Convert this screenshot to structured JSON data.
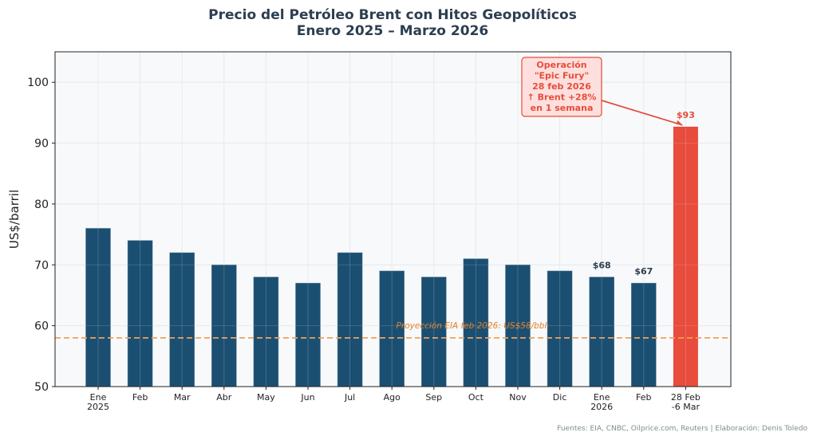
{
  "chart_data": {
    "type": "bar",
    "title": "Precio del Petróleo Brent con Hitos Geopolíticos",
    "subtitle": "Enero 2025 – Marzo 2026",
    "xlabel": "",
    "ylabel": "US$/barril",
    "ylim": [
      50,
      105
    ],
    "yticks": [
      50,
      60,
      70,
      80,
      90,
      100
    ],
    "grid": true,
    "categories": [
      "Ene\n2025",
      "Feb",
      "Mar",
      "Abr",
      "May",
      "Jun",
      "Jul",
      "Ago",
      "Sep",
      "Oct",
      "Nov",
      "Dic",
      "Ene\n2026",
      "Feb",
      "28 Feb\n-6 Mar"
    ],
    "values": [
      76,
      74,
      72,
      70,
      68,
      67,
      72,
      69,
      68,
      71,
      70,
      69,
      68,
      67,
      92.7
    ],
    "bar_colors": [
      "#1b4f72",
      "#1b4f72",
      "#1b4f72",
      "#1b4f72",
      "#1b4f72",
      "#1b4f72",
      "#1b4f72",
      "#1b4f72",
      "#1b4f72",
      "#1b4f72",
      "#1b4f72",
      "#1b4f72",
      "#1b4f72",
      "#1b4f72",
      "#e74c3c"
    ],
    "value_labels": [
      {
        "index": 12,
        "text": "$68",
        "highlight": false
      },
      {
        "index": 13,
        "text": "$67",
        "highlight": false
      },
      {
        "index": 14,
        "text": "$93",
        "highlight": true
      }
    ],
    "reference_line": {
      "y": 58,
      "label": "Proyección EIA feb 2026: US$58/bbl",
      "color": "#f0a05a",
      "style": "dashed"
    },
    "annotation": {
      "lines": [
        "Operación",
        "\"Epic Fury\"",
        "28 feb 2026",
        "↑ Brent +28%",
        "en 1 semana"
      ],
      "target_index": 14,
      "color": "#e74c3c",
      "box_fill": "#fde0dd"
    },
    "source": "Fuentes: EIA, CNBC, Oilprice.com, Reuters | Elaboración: Denis Toledo"
  },
  "colors": {
    "primary_bar": "#1b4f72",
    "highlight_bar": "#e74c3c",
    "title": "#2c3e50",
    "plot_bg": "#f7f9fb",
    "grid": "#e3e6ea"
  }
}
